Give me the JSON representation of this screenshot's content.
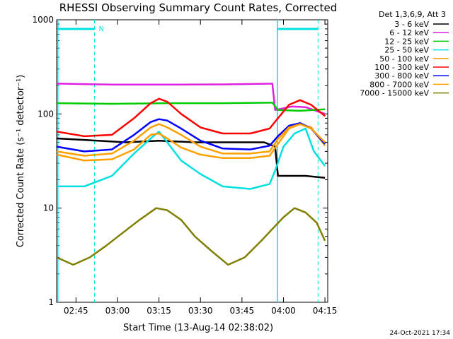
{
  "chart_data": {
    "type": "line",
    "title": "RHESSI Observing Summary Count Rates, Corrected",
    "xlabel": "Start Time (13-Aug-14 02:38:02)",
    "ylabel": "Corrected Count Rate (s⁻¹ detector⁻¹)",
    "ylim": [
      1,
      1000
    ],
    "yscale": "log",
    "xlim_minutes_after_0238": [
      0,
      98
    ],
    "yticks": [
      "1",
      "10",
      "100",
      "1000"
    ],
    "xticks": [
      {
        "label": "02:45",
        "t": 7
      },
      {
        "label": "03:00",
        "t": 22
      },
      {
        "label": "03:15",
        "t": 37
      },
      {
        "label": "03:30",
        "t": 52
      },
      {
        "label": "03:45",
        "t": 67
      },
      {
        "label": "04:00",
        "t": 82
      },
      {
        "label": "04:15",
        "t": 97
      }
    ],
    "legend_title": "Det 1,3,6,9, Att 3",
    "legend_position": "right",
    "night_marker_label": "N",
    "series": [
      {
        "name": "3 - 6 keV",
        "color": "#000000",
        "points": [
          [
            0,
            55
          ],
          [
            15,
            52
          ],
          [
            25,
            50
          ],
          [
            37,
            52
          ],
          [
            50,
            50
          ],
          [
            62,
            50
          ],
          [
            75,
            50
          ],
          [
            79,
            45
          ],
          [
            80,
            22
          ],
          [
            90,
            22
          ],
          [
            97,
            21
          ]
        ]
      },
      {
        "name": "6 - 12 keV",
        "color": "#e020e0",
        "points": [
          [
            0,
            210
          ],
          [
            20,
            205
          ],
          [
            40,
            205
          ],
          [
            60,
            206
          ],
          [
            78,
            210
          ],
          [
            79,
            110
          ],
          [
            85,
            120
          ],
          [
            90,
            118
          ],
          [
            97,
            100
          ]
        ]
      },
      {
        "name": "12 - 25 keV",
        "color": "#00cc00",
        "points": [
          [
            0,
            130
          ],
          [
            20,
            128
          ],
          [
            40,
            130
          ],
          [
            60,
            130
          ],
          [
            78,
            132
          ],
          [
            80,
            110
          ],
          [
            88,
            108
          ],
          [
            97,
            112
          ]
        ]
      },
      {
        "name": "25 - 50 keV",
        "color": "#00e0e0",
        "points": [
          [
            0,
            17
          ],
          [
            10,
            17
          ],
          [
            20,
            22
          ],
          [
            28,
            38
          ],
          [
            34,
            55
          ],
          [
            37,
            65
          ],
          [
            40,
            50
          ],
          [
            45,
            32
          ],
          [
            52,
            23
          ],
          [
            60,
            17
          ],
          [
            70,
            16
          ],
          [
            77,
            18
          ],
          [
            79,
            25
          ],
          [
            82,
            45
          ],
          [
            86,
            62
          ],
          [
            90,
            70
          ],
          [
            93,
            40
          ],
          [
            97,
            28
          ]
        ]
      },
      {
        "name": "50 - 100 keV",
        "color": "#ffa000",
        "points": [
          [
            0,
            37
          ],
          [
            10,
            32
          ],
          [
            20,
            33
          ],
          [
            28,
            42
          ],
          [
            34,
            60
          ],
          [
            37,
            62
          ],
          [
            40,
            55
          ],
          [
            45,
            44
          ],
          [
            52,
            37
          ],
          [
            60,
            34
          ],
          [
            70,
            34
          ],
          [
            77,
            36
          ],
          [
            80,
            48
          ],
          [
            84,
            70
          ],
          [
            88,
            78
          ],
          [
            92,
            72
          ],
          [
            97,
            46
          ]
        ]
      },
      {
        "name": "100 - 300 keV",
        "color": "#ff0000",
        "points": [
          [
            0,
            65
          ],
          [
            10,
            58
          ],
          [
            20,
            60
          ],
          [
            28,
            90
          ],
          [
            34,
            130
          ],
          [
            37,
            145
          ],
          [
            40,
            135
          ],
          [
            45,
            100
          ],
          [
            52,
            72
          ],
          [
            60,
            62
          ],
          [
            70,
            62
          ],
          [
            77,
            70
          ],
          [
            80,
            90
          ],
          [
            84,
            125
          ],
          [
            88,
            140
          ],
          [
            92,
            125
          ],
          [
            97,
            95
          ]
        ]
      },
      {
        "name": "300 - 800 keV",
        "color": "#0000ff",
        "points": [
          [
            0,
            45
          ],
          [
            10,
            40
          ],
          [
            20,
            42
          ],
          [
            28,
            60
          ],
          [
            34,
            82
          ],
          [
            37,
            88
          ],
          [
            40,
            85
          ],
          [
            45,
            70
          ],
          [
            52,
            52
          ],
          [
            60,
            43
          ],
          [
            70,
            42
          ],
          [
            77,
            46
          ],
          [
            80,
            58
          ],
          [
            84,
            75
          ],
          [
            88,
            80
          ],
          [
            92,
            70
          ],
          [
            97,
            48
          ]
        ]
      },
      {
        "name": "800 - 7000 keV",
        "color": "#ffa000",
        "points": [
          [
            0,
            40
          ],
          [
            10,
            36
          ],
          [
            20,
            38
          ],
          [
            28,
            52
          ],
          [
            34,
            72
          ],
          [
            37,
            78
          ],
          [
            40,
            72
          ],
          [
            45,
            60
          ],
          [
            52,
            45
          ],
          [
            60,
            38
          ],
          [
            70,
            38
          ],
          [
            77,
            40
          ],
          [
            80,
            54
          ],
          [
            84,
            72
          ],
          [
            88,
            78
          ],
          [
            92,
            70
          ],
          [
            97,
            50
          ]
        ]
      },
      {
        "name": "7000 - 15000 keV",
        "color": "#808000",
        "points": [
          [
            0,
            3
          ],
          [
            6,
            2.5
          ],
          [
            12,
            3
          ],
          [
            18,
            4
          ],
          [
            24,
            5.5
          ],
          [
            30,
            7.5
          ],
          [
            36,
            10
          ],
          [
            40,
            9.5
          ],
          [
            45,
            7.5
          ],
          [
            50,
            5
          ],
          [
            56,
            3.5
          ],
          [
            62,
            2.5
          ],
          [
            68,
            3
          ],
          [
            74,
            4.5
          ],
          [
            78,
            6
          ],
          [
            82,
            8
          ],
          [
            86,
            10
          ],
          [
            90,
            9
          ],
          [
            94,
            7
          ],
          [
            97,
            4.5
          ]
        ]
      }
    ]
  },
  "footer_date": "24-Oct-2021 17:34"
}
